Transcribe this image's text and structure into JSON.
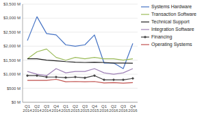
{
  "chart_data": {
    "type": "line",
    "categories": [
      "Q1\n2014",
      "Q2\n2014",
      "Q3\n2014",
      "Q4\n2014",
      "Q1\n2015",
      "Q2\n2015",
      "Q3\n2015",
      "Q4\n2015",
      "Q1\n2016",
      "Q2\n2016",
      "Q3\n2016",
      "Q4\n2016"
    ],
    "series": [
      {
        "name": "Systems Hardware",
        "color": "#4472C4",
        "values": [
          2200,
          3050,
          2450,
          2400,
          2050,
          2000,
          2050,
          2400,
          1400,
          1400,
          1200,
          2100
        ]
      },
      {
        "name": "Transaction Software",
        "color": "#9BBB59",
        "values": [
          1550,
          1800,
          1900,
          1600,
          1500,
          1600,
          1550,
          1600,
          1550,
          1550,
          1500,
          1550
        ]
      },
      {
        "name": "Technical Support",
        "color": "#1F1F1F",
        "values": [
          1550,
          1550,
          1500,
          1480,
          1450,
          1430,
          1420,
          1430,
          1420,
          1400,
          1400,
          1390
        ]
      },
      {
        "name": "Integration Software",
        "color": "#9E80B5",
        "values": [
          1100,
          1000,
          950,
          1200,
          1050,
          1100,
          1100,
          1200,
          1050,
          1000,
          1050,
          1200
        ]
      },
      {
        "name": "Financing",
        "color": "#404040",
        "marker": "diamond",
        "values": [
          950,
          950,
          900,
          900,
          880,
          900,
          870,
          950,
          800,
          800,
          800,
          850
        ]
      },
      {
        "name": "Operating Systems",
        "color": "#C0504D",
        "values": [
          780,
          780,
          780,
          820,
          730,
          740,
          730,
          740,
          690,
          700,
          680,
          700
        ]
      }
    ],
    "ylim": [
      0,
      3500
    ],
    "yticks": [
      {
        "value": 0,
        "label": "$0 M"
      },
      {
        "value": 500,
        "label": "$500 M"
      },
      {
        "value": 1000,
        "label": "$1,000 M"
      },
      {
        "value": 1500,
        "label": "$1,500 M"
      },
      {
        "value": 2000,
        "label": "$2,000 M"
      },
      {
        "value": 2500,
        "label": "$2,500 M"
      },
      {
        "value": 3000,
        "label": "$3,000 M"
      },
      {
        "value": 3500,
        "label": "$3,500 M"
      }
    ],
    "grid": true,
    "legend": "right"
  }
}
